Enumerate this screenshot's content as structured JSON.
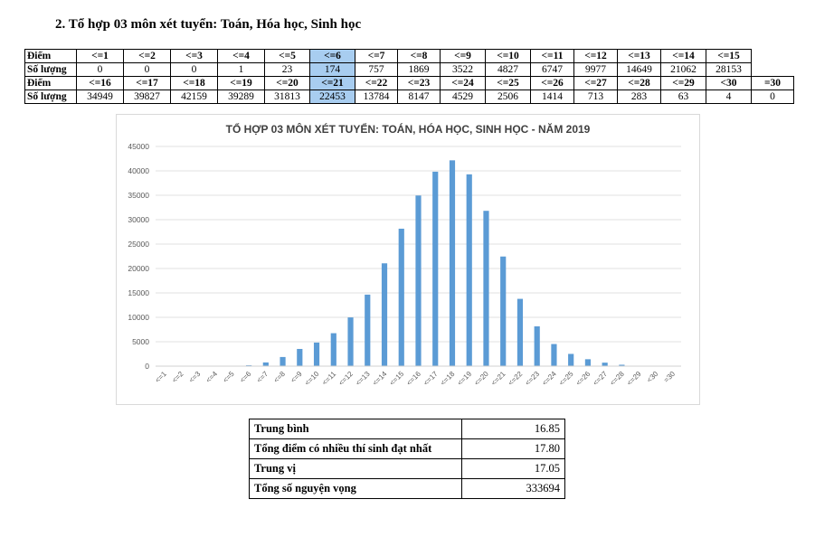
{
  "heading": "2. Tổ hợp 03 môn xét tuyển: Toán, Hóa học, Sinh học",
  "score_table": {
    "row_label_score": "Điểm",
    "row_label_count": "Số lượng",
    "rows": [
      {
        "scores": [
          "<=1",
          "<=2",
          "<=3",
          "<=4",
          "<=5",
          "<=6",
          "<=7",
          "<=8",
          "<=9",
          "<=10",
          "<=11",
          "<=12",
          "<=13",
          "<=14",
          "<=15"
        ],
        "counts": [
          "0",
          "0",
          "0",
          "1",
          "23",
          "174",
          "757",
          "1869",
          "3522",
          "4827",
          "6747",
          "9977",
          "14649",
          "21062",
          "28153"
        ],
        "highlight_index": 5
      },
      {
        "scores": [
          "<=16",
          "<=17",
          "<=18",
          "<=19",
          "<=20",
          "<=21",
          "<=22",
          "<=23",
          "<=24",
          "<=25",
          "<=26",
          "<=27",
          "<=28",
          "<=29",
          "<30",
          "=30"
        ],
        "counts": [
          "34949",
          "39827",
          "42159",
          "39289",
          "31813",
          "22453",
          "13784",
          "8147",
          "4529",
          "2506",
          "1414",
          "713",
          "283",
          "63",
          "4",
          "0"
        ],
        "highlight_index": 5
      }
    ]
  },
  "chart_data": {
    "type": "bar",
    "title": "TỔ HỢP 03 MÔN XÉT TUYỂN: TOÁN, HÓA HỌC, SINH HỌC - NĂM 2019",
    "categories": [
      "<=1",
      "<=2",
      "<=3",
      "<=4",
      "<=5",
      "<=6",
      "<=7",
      "<=8",
      "<=9",
      "<=10",
      "<=11",
      "<=12",
      "<=13",
      "<=14",
      "<=15",
      "<=16",
      "<=17",
      "<=18",
      "<=19",
      "<=20",
      "<=21",
      "<=22",
      "<=23",
      "<=24",
      "<=25",
      "<=26",
      "<=27",
      "<=28",
      "<=29",
      "<30",
      "=30"
    ],
    "values": [
      0,
      0,
      0,
      1,
      23,
      174,
      757,
      1869,
      3522,
      4827,
      6747,
      9977,
      14649,
      21062,
      28153,
      34949,
      39827,
      42159,
      39289,
      31813,
      22453,
      13784,
      8147,
      4529,
      2506,
      1414,
      713,
      283,
      63,
      4,
      0
    ],
    "yticks": [
      0,
      5000,
      10000,
      15000,
      20000,
      25000,
      30000,
      35000,
      40000,
      45000
    ],
    "ylim": [
      0,
      45000
    ],
    "grid": true,
    "legend": "none",
    "bar_color": "#5b9bd5"
  },
  "stats": [
    {
      "label": "Trung bình",
      "value": "16.85"
    },
    {
      "label": "Tổng điểm có nhiều thí sinh đạt nhất",
      "value": "17.80"
    },
    {
      "label": "Trung vị",
      "value": "17.05"
    },
    {
      "label": "Tổng số nguyện vọng",
      "value": "333694"
    }
  ]
}
